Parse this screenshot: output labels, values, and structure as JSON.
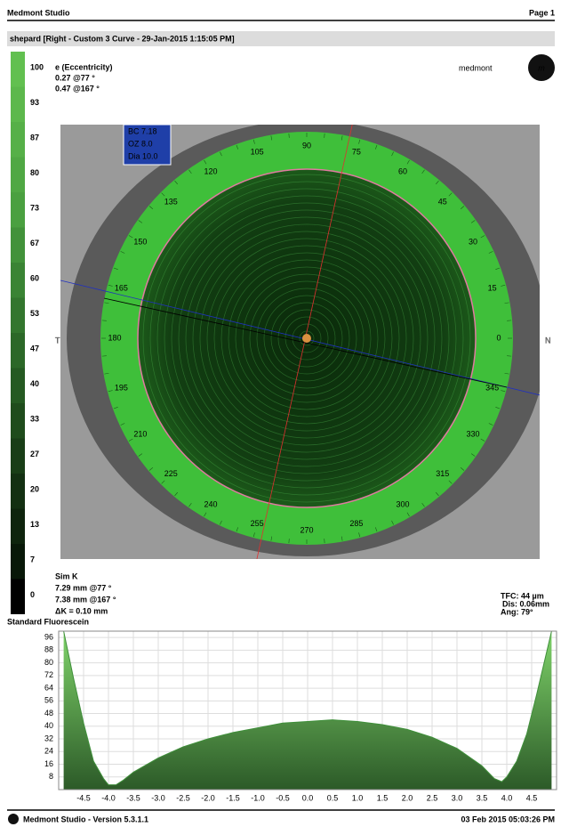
{
  "header": {
    "app": "Medmont Studio",
    "page": "Page 1"
  },
  "subtitle": "shepard [Right - Custom 3 Curve - 29-Jan-2015 1:15:05 PM]",
  "scale": {
    "labels": [
      "100",
      "93",
      "87",
      "80",
      "73",
      "67",
      "60",
      "53",
      "47",
      "40",
      "33",
      "27",
      "20",
      "13",
      "7",
      "0"
    ],
    "colors": [
      "#62c050",
      "#5cb84c",
      "#56b048",
      "#50a844",
      "#4aa040",
      "#42923a",
      "#3a8434",
      "#33762e",
      "#2c6828",
      "#255a22",
      "#1f4c1c",
      "#193e17",
      "#133012",
      "#0e240d",
      "#081808",
      "#000000"
    ]
  },
  "eccentricity": {
    "title": "e (Eccentricity)",
    "lines": [
      "0.27 @77 °",
      "0.47 @167 °"
    ]
  },
  "logo": "medmont",
  "lens": [
    "BC 7.18",
    "OZ 8.0",
    "Dia 10.0"
  ],
  "side_labels": {
    "left": "T",
    "right": "N"
  },
  "ring_angles": [
    0,
    15,
    30,
    45,
    60,
    75,
    90,
    105,
    120,
    135,
    150,
    165,
    180,
    195,
    210,
    225,
    240,
    255,
    270,
    285,
    300,
    315,
    330,
    345
  ],
  "sim_k": {
    "title": "Sim K",
    "lines": [
      "7.29 mm @77 °",
      "7.38 mm @167 °",
      "ΔK = 0.10 mm"
    ]
  },
  "tfc": [
    "TFC: 44 µm",
    "Dis: 0.06mm",
    "Ang: 79°"
  ],
  "fluor_label": "Standard Fluorescein",
  "chart_data": {
    "type": "area",
    "color": "#3f8f3a",
    "grid": true,
    "x": [
      -4.9,
      -4.7,
      -4.5,
      -4.3,
      -4.1,
      -4.0,
      -3.85,
      -3.7,
      -3.5,
      -3.0,
      -2.5,
      -2.0,
      -1.5,
      -1.0,
      -0.5,
      0,
      0.5,
      1.0,
      1.5,
      2.0,
      2.5,
      3.0,
      3.5,
      3.75,
      3.9,
      4.0,
      4.2,
      4.4,
      4.6,
      4.9
    ],
    "values": [
      100,
      70,
      42,
      18,
      7,
      3,
      3,
      6,
      11,
      20,
      27,
      32,
      36,
      39,
      42,
      43,
      44,
      43,
      41,
      38,
      33,
      26,
      15,
      7,
      5,
      8,
      18,
      35,
      60,
      100
    ],
    "xlim": [
      -5,
      5
    ],
    "ylim": [
      0,
      100
    ],
    "xticks": [
      -4.5,
      {
        "value": -4,
        "label": "-4.0"
      },
      -3.5,
      {
        "value": -3,
        "label": "-3.0"
      },
      -2.5,
      {
        "value": -2,
        "label": "-2.0"
      },
      -1.5,
      {
        "value": -1,
        "label": "-1.0"
      },
      -0.5,
      {
        "value": 0,
        "label": "0.0"
      },
      0.5,
      {
        "value": 1,
        "label": "1.0"
      },
      1.5,
      {
        "value": 2,
        "label": "2.0"
      },
      2.5,
      {
        "value": 3,
        "label": "3.0"
      },
      3.5,
      {
        "value": 4,
        "label": "4.0"
      },
      4.5
    ],
    "yticks": [
      8,
      16,
      24,
      32,
      40,
      48,
      56,
      64,
      72,
      80,
      88,
      96
    ]
  },
  "footer": {
    "version": "Medmont Studio - Version 5.3.1.1",
    "date": "03 Feb 2015 05:03:26 PM"
  }
}
